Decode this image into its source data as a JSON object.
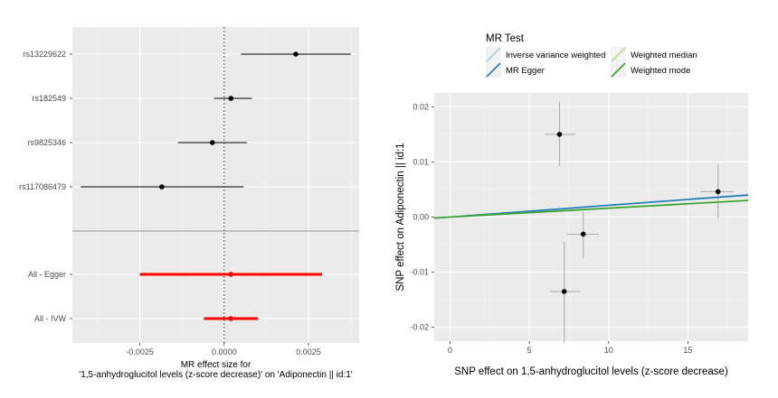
{
  "chart_data": [
    {
      "type": "forest",
      "xlabel_line1": "MR effect size for",
      "xlabel_line2": "'1,5-anhydroglucitol levels (z-score decrease)' on 'Adiponectin || id:1'",
      "xlim": [
        -0.0045,
        0.004
      ],
      "xticks": [
        {
          "value": -0.0025,
          "label": "-0.0025"
        },
        {
          "value": 0.0,
          "label": "0.0000"
        },
        {
          "value": 0.0025,
          "label": "0.0025"
        }
      ],
      "snps": [
        {
          "name": "rs13229622",
          "b": 0.00212,
          "lo": 0.0005,
          "hi": 0.00375
        },
        {
          "name": "rs182549",
          "b": 0.0002,
          "lo": -0.0003,
          "hi": 0.00082
        },
        {
          "name": "rs9825346",
          "b": -0.00035,
          "lo": -0.00137,
          "hi": 0.00067
        },
        {
          "name": "rs117086479",
          "b": -0.00185,
          "lo": -0.00425,
          "hi": 0.00058
        }
      ],
      "summaries": [
        {
          "name": "All - Egger",
          "b": 0.0002,
          "lo": -0.0025,
          "hi": 0.0029
        },
        {
          "name": "All - IVW",
          "b": 0.0002,
          "lo": -0.0006,
          "hi": 0.001
        }
      ],
      "colors": {
        "panel": "#ebebeb",
        "snp": "#000000",
        "summary": "#ff0000",
        "ref": "#555555"
      }
    },
    {
      "type": "scatter",
      "xlabel": "SNP effect on 1,5-anhydroglucitol levels (z-score decrease)",
      "ylabel": "SNP effect on Adiponectin || id:1",
      "xlim": [
        -1,
        18.8
      ],
      "ylim": [
        -0.0225,
        0.0225
      ],
      "xticks": [
        {
          "value": 0,
          "label": "0"
        },
        {
          "value": 5,
          "label": "5"
        },
        {
          "value": 10,
          "label": "10"
        },
        {
          "value": 15,
          "label": "15"
        }
      ],
      "yticks": [
        {
          "value": -0.02,
          "label": "-0.02"
        },
        {
          "value": -0.01,
          "label": "-0.01"
        },
        {
          "value": 0.0,
          "label": "0.00"
        },
        {
          "value": 0.01,
          "label": "0.01"
        },
        {
          "value": 0.02,
          "label": "0.02"
        }
      ],
      "points": [
        {
          "x": 6.9,
          "y": 0.015,
          "xlo": 6.0,
          "xhi": 7.9,
          "ylo": 0.0092,
          "yhi": 0.0209
        },
        {
          "x": 7.2,
          "y": -0.0135,
          "xlo": 6.3,
          "xhi": 8.2,
          "ylo": -0.0228,
          "yhi": -0.0045
        },
        {
          "x": 8.4,
          "y": -0.0031,
          "xlo": 7.4,
          "xhi": 9.4,
          "ylo": -0.0075,
          "yhi": 0.001
        },
        {
          "x": 16.9,
          "y": 0.0046,
          "xlo": 15.8,
          "xhi": 17.9,
          "ylo": -0.0003,
          "yhi": 0.0096
        }
      ],
      "series": [
        {
          "name": "Inverse variance weighted",
          "slope": 0.000217,
          "color": "#a6cee3"
        },
        {
          "name": "MR Egger",
          "slope": 0.000212,
          "color": "#1f78b4"
        },
        {
          "name": "Weighted median",
          "slope": 0.000163,
          "color": "#b2df8a"
        },
        {
          "name": "Weighted mode",
          "slope": 0.00016,
          "color": "#33a02c"
        }
      ],
      "legend_title": "MR Test",
      "legend_position": "top"
    }
  ]
}
